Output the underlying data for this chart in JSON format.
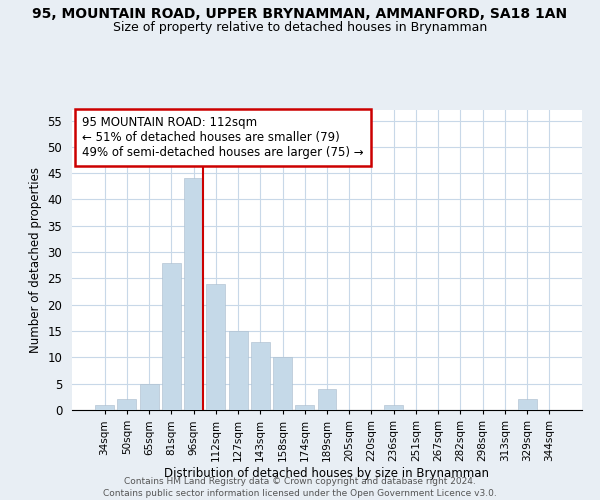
{
  "title": "95, MOUNTAIN ROAD, UPPER BRYNAMMAN, AMMANFORD, SA18 1AN",
  "subtitle": "Size of property relative to detached houses in Brynamman",
  "xlabel": "Distribution of detached houses by size in Brynamman",
  "ylabel": "Number of detached properties",
  "bar_labels": [
    "34sqm",
    "50sqm",
    "65sqm",
    "81sqm",
    "96sqm",
    "112sqm",
    "127sqm",
    "143sqm",
    "158sqm",
    "174sqm",
    "189sqm",
    "205sqm",
    "220sqm",
    "236sqm",
    "251sqm",
    "267sqm",
    "282sqm",
    "298sqm",
    "313sqm",
    "329sqm",
    "344sqm"
  ],
  "bar_values": [
    1,
    2,
    5,
    28,
    44,
    24,
    15,
    13,
    10,
    1,
    4,
    0,
    0,
    1,
    0,
    0,
    0,
    0,
    0,
    2,
    0
  ],
  "bar_color": "#c5d9e8",
  "vline_color": "#cc0000",
  "vline_index": 4,
  "annotation_line1": "95 MOUNTAIN ROAD: 112sqm",
  "annotation_line2": "← 51% of detached houses are smaller (79)",
  "annotation_line3": "49% of semi-detached houses are larger (75) →",
  "ylim": [
    0,
    57
  ],
  "yticks": [
    0,
    5,
    10,
    15,
    20,
    25,
    30,
    35,
    40,
    45,
    50,
    55
  ],
  "footer1": "Contains HM Land Registry data © Crown copyright and database right 2024.",
  "footer2": "Contains public sector information licensed under the Open Government Licence v3.0.",
  "bg_color": "#e8eef4",
  "plot_bg_color": "#ffffff",
  "grid_color": "#c8d8e8"
}
